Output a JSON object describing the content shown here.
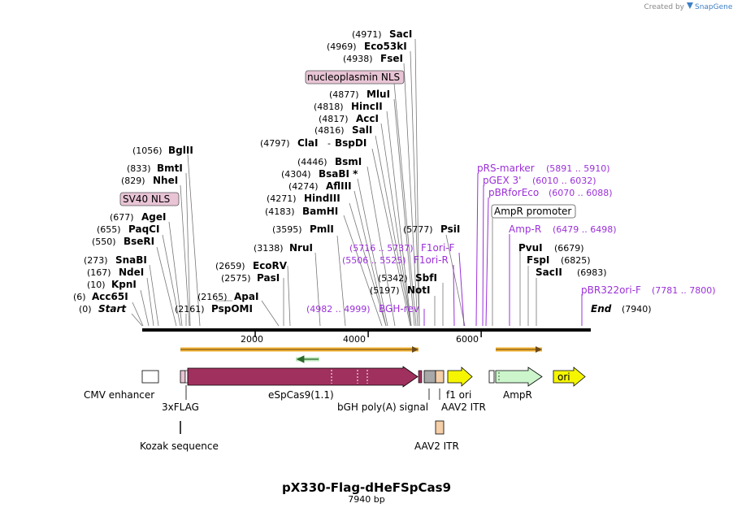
{
  "plasmid": {
    "name": "pX330-Flag-dHeFSpCas9",
    "length_label": "7940 bp",
    "length": 7940
  },
  "watermark": "Created by",
  "watermark_brand": "SnapGene",
  "ruler_ticks": [
    {
      "bp": 2000,
      "label": "2000"
    },
    {
      "bp": 4000,
      "label": "4000"
    },
    {
      "bp": 6000,
      "label": "6000"
    }
  ],
  "enzymes_left": [
    {
      "pos": "(1056)",
      "name": "BglII",
      "bp": 1056
    },
    {
      "pos": "(833)",
      "name": "BmtI",
      "bp": 833
    },
    {
      "pos": "(829)",
      "name": "NheI",
      "bp": 829
    },
    {
      "pos": "(677)",
      "name": "AgeI",
      "bp": 677
    },
    {
      "pos": "(655)",
      "name": "PaqCI",
      "bp": 655
    },
    {
      "pos": "(550)",
      "name": "BseRI",
      "bp": 550
    },
    {
      "pos": "(273)",
      "name": "SnaBI",
      "bp": 273
    },
    {
      "pos": "(167)",
      "name": "NdeI",
      "bp": 167
    },
    {
      "pos": "(10)",
      "name": "KpnI",
      "bp": 10
    },
    {
      "pos": "(6)",
      "name": "Acc65I",
      "bp": 6
    },
    {
      "pos": "(0)",
      "name": "Start",
      "bp": 0,
      "italic": true
    }
  ],
  "enzymes_mid": [
    {
      "pos": "(2161)",
      "name": "PspOMI",
      "bp": 2161
    },
    {
      "pos": "(2165)",
      "name": "ApaI",
      "bp": 2165
    },
    {
      "pos": "(2575)",
      "name": "PasI",
      "bp": 2575
    },
    {
      "pos": "(2659)",
      "name": "EcoRV",
      "bp": 2659
    },
    {
      "pos": "(3138)",
      "name": "NruI",
      "bp": 3138
    },
    {
      "pos": "(3595)",
      "name": "PmlI",
      "bp": 3595
    },
    {
      "pos": "(4183)",
      "name": "BamHI",
      "bp": 4183
    },
    {
      "pos": "(4271)",
      "name": "HindIII",
      "bp": 4271
    },
    {
      "pos": "(4274)",
      "name": "AflIII",
      "bp": 4274
    },
    {
      "pos": "(4304)",
      "name": "BsaBI *",
      "bp": 4304
    },
    {
      "pos": "(4446)",
      "name": "BsmI",
      "bp": 4446
    },
    {
      "pos": "(4797)",
      "name": "ClaI",
      "name2": "BspDI",
      "bp": 4797
    },
    {
      "pos": "(4816)",
      "name": "SalI",
      "bp": 4816
    },
    {
      "pos": "(4817)",
      "name": "AccI",
      "bp": 4817
    },
    {
      "pos": "(4818)",
      "name": "HincII",
      "bp": 4818
    },
    {
      "pos": "(4877)",
      "name": "MluI",
      "bp": 4877
    },
    {
      "pos": "(4938)",
      "name": "FseI",
      "bp": 4938
    },
    {
      "pos": "(4969)",
      "name": "Eco53kI",
      "bp": 4969
    },
    {
      "pos": "(4971)",
      "name": "SacI",
      "bp": 4971
    },
    {
      "pos": "(5197)",
      "name": "NotI",
      "bp": 5197
    },
    {
      "pos": "(5342)",
      "name": "SbfI",
      "bp": 5342
    },
    {
      "pos": "(5777)",
      "name": "PsiI",
      "bp": 5777
    }
  ],
  "enzymes_right": [
    {
      "pos": "(6679)",
      "name": "PvuI",
      "bp": 6679
    },
    {
      "pos": "(6825)",
      "name": "FspI",
      "bp": 6825
    },
    {
      "pos": "(6983)",
      "name": "SacII",
      "bp": 6983
    },
    {
      "pos": "(7940)",
      "name": "End",
      "bp": 7940,
      "italic": true
    }
  ],
  "primers": [
    {
      "name": "pRS-marker",
      "range": "(5891 .. 5910)",
      "bp": 5900
    },
    {
      "name": "pGEX 3'",
      "range": "(6010 .. 6032)",
      "bp": 6021
    },
    {
      "name": "pBRforEco",
      "range": "(6070 .. 6088)",
      "bp": 6079
    },
    {
      "name": "Amp-R",
      "range": "(6479 .. 6498)",
      "bp": 6488
    },
    {
      "name": "pBR322ori-F",
      "range": "(7781 .. 7800)",
      "bp": 7790
    },
    {
      "name": "F1ori-F",
      "range": "(5716 .. 5737)",
      "bp": 5726
    },
    {
      "name": "F1ori-R",
      "range": "(5506 .. 5525)",
      "bp": 5515
    },
    {
      "name": "BGH-rev",
      "range": "(4982 .. 4999)",
      "bp": 4990
    }
  ],
  "boxed_labels": [
    {
      "text": "nucleoplasmin NLS",
      "style": "nls"
    },
    {
      "text": "SV40 NLS",
      "style": "nls"
    },
    {
      "text": "AmpR promoter",
      "style": "plain"
    }
  ],
  "features": [
    {
      "name": "CMV enhancer"
    },
    {
      "name": "3xFLAG"
    },
    {
      "name": "eSpCas9(1.1)"
    },
    {
      "name": "bGH poly(A) signal"
    },
    {
      "name": "f1 ori"
    },
    {
      "name": "AAV2 ITR"
    },
    {
      "name": "AmpR"
    },
    {
      "name": "ori"
    },
    {
      "name": "Kozak sequence"
    },
    {
      "name": "AAV2 ITR"
    }
  ],
  "colors": {
    "cas9": "#a0305e",
    "nls": "#e8c4d4",
    "primer": "#9b30d9",
    "f1ori": "#f5f500",
    "ori": "#f5f500",
    "ampr": "#ccf5cc",
    "itr": "#f5cfa8",
    "bgh": "#a8a8a8",
    "orf": "#f0b030"
  }
}
